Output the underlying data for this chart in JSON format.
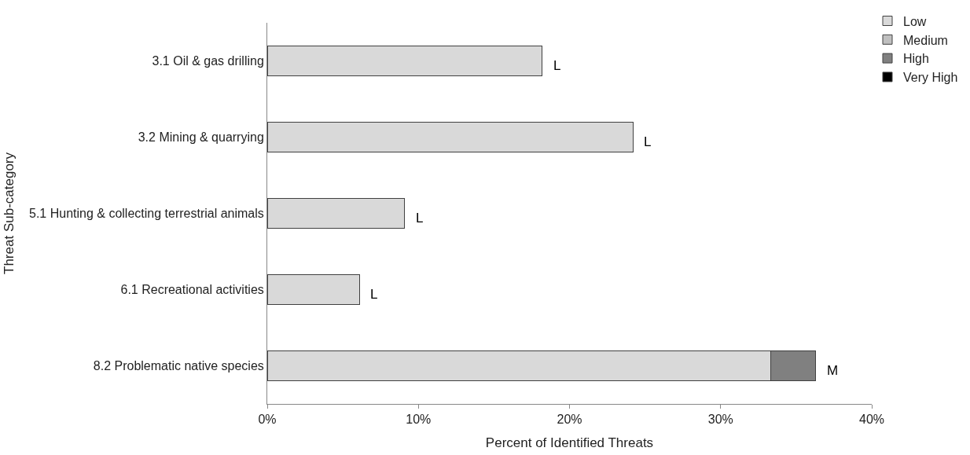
{
  "chart_data": {
    "type": "bar",
    "orientation": "horizontal",
    "stacked": true,
    "ylabel": "Threat Sub-category",
    "xlabel": "Percent of Identified Threats",
    "categories": [
      "3.1 Oil & gas drilling",
      "3.2 Mining & quarrying",
      "5.1 Hunting & collecting terrestrial animals",
      "6.1 Recreational activities",
      "8.2 Problematic native species"
    ],
    "series": [
      {
        "name": "Low",
        "color": "#d9d9d9",
        "values": [
          18.2,
          24.2,
          9.1,
          6.1,
          33.3
        ]
      },
      {
        "name": "Medium",
        "color": "#bfbfbf",
        "values": [
          null,
          null,
          null,
          null,
          null
        ]
      },
      {
        "name": "High",
        "color": "#808080",
        "values": [
          null,
          null,
          null,
          null,
          3.0
        ]
      },
      {
        "name": "Very High",
        "color": "#000000",
        "values": [
          null,
          null,
          null,
          null,
          null
        ]
      }
    ],
    "xlim": [
      0,
      40
    ],
    "xticks": [
      {
        "value": 0,
        "label": "0%"
      },
      {
        "value": 10,
        "label": "10%"
      },
      {
        "value": 20,
        "label": "20%"
      },
      {
        "value": 30,
        "label": "30%"
      },
      {
        "value": 40,
        "label": "40%"
      }
    ],
    "annotations": [
      {
        "text": "L",
        "x": 18.2,
        "y": "3.1 Oil & gas drilling"
      },
      {
        "text": "L",
        "x": 24.2,
        "y": "3.2 Mining & quarrying"
      },
      {
        "text": "L",
        "x": 9.1,
        "y": "5.1 Hunting & collecting terrestrial animals"
      },
      {
        "text": "L",
        "x": 6.1,
        "y": "6.1 Recreational activities"
      },
      {
        "text": "M",
        "x": 36.3,
        "y": "8.2 Problematic native species"
      }
    ],
    "grid": false,
    "legend": "top right"
  }
}
